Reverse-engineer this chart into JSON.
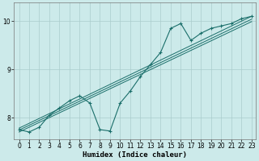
{
  "xlabel": "Humidex (Indice chaleur)",
  "bg_color": "#cceaea",
  "grid_color": "#aacccc",
  "line_color": "#1a6e6a",
  "xlim_min": -0.5,
  "xlim_max": 23.4,
  "ylim_min": 7.55,
  "ylim_max": 10.38,
  "yticks": [
    8,
    9,
    10
  ],
  "xticks": [
    0,
    1,
    2,
    3,
    4,
    5,
    6,
    7,
    8,
    9,
    10,
    11,
    12,
    13,
    14,
    15,
    16,
    17,
    18,
    19,
    20,
    21,
    22,
    23
  ],
  "data_x": [
    0,
    1,
    2,
    3,
    4,
    5,
    6,
    7,
    8,
    9,
    10,
    11,
    12,
    13,
    14,
    15,
    16,
    17,
    18,
    19,
    20,
    21,
    22,
    23
  ],
  "data_y": [
    7.75,
    7.7,
    7.8,
    8.05,
    8.2,
    8.35,
    8.45,
    8.3,
    7.75,
    7.72,
    8.3,
    8.55,
    8.85,
    9.1,
    9.35,
    9.85,
    9.95,
    9.6,
    9.75,
    9.85,
    9.9,
    9.95,
    10.05,
    10.1
  ],
  "reg_lines": [
    {
      "x": [
        0,
        23
      ],
      "y": [
        7.78,
        10.1
      ]
    },
    {
      "x": [
        0,
        23
      ],
      "y": [
        7.74,
        10.04
      ]
    },
    {
      "x": [
        0,
        23
      ],
      "y": [
        7.7,
        9.99
      ]
    }
  ],
  "xlabel_fontsize": 6.5,
  "tick_fontsize": 5.5
}
